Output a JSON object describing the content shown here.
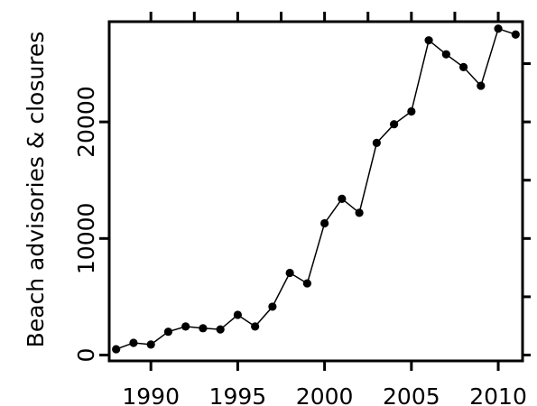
{
  "chart_data": {
    "type": "line",
    "title": "",
    "xlabel": "",
    "ylabel": "Beach advisories & closures",
    "xlim": [
      1987.6,
      2011.4
    ],
    "ylim": [
      -500,
      28600
    ],
    "x_ticks": [
      {
        "value": 1990,
        "label": "1990"
      },
      {
        "value": 1995,
        "label": "1995"
      },
      {
        "value": 2000,
        "label": "2000"
      },
      {
        "value": 2005,
        "label": "2005"
      },
      {
        "value": 2010,
        "label": "2010"
      }
    ],
    "y_ticks": [
      {
        "value": 0,
        "label": "0"
      },
      {
        "value": 10000,
        "label": "10000"
      },
      {
        "value": 20000,
        "label": "20000"
      }
    ],
    "minor_x_ticks": [
      1992.5,
      1997.5,
      2002.5,
      2007.5
    ],
    "minor_y_ticks": [
      5000,
      15000,
      25000
    ],
    "grid": false,
    "marker": "filled-circle",
    "line_color": "#000000",
    "series": [
      {
        "x": [
          1988,
          1989,
          1990,
          1991,
          1992,
          1993,
          1994,
          1995,
          1996,
          1997,
          1998,
          1999,
          2000,
          2001,
          2002,
          2003,
          2004,
          2005,
          2006,
          2007,
          2008,
          2009,
          2010,
          2011
        ],
        "values": [
          500,
          1050,
          900,
          2000,
          2450,
          2300,
          2200,
          3450,
          2450,
          4150,
          7050,
          6150,
          11300,
          13400,
          12200,
          18200,
          19800,
          20900,
          27000,
          25800,
          24700,
          23100,
          28000,
          27500
        ]
      }
    ]
  }
}
